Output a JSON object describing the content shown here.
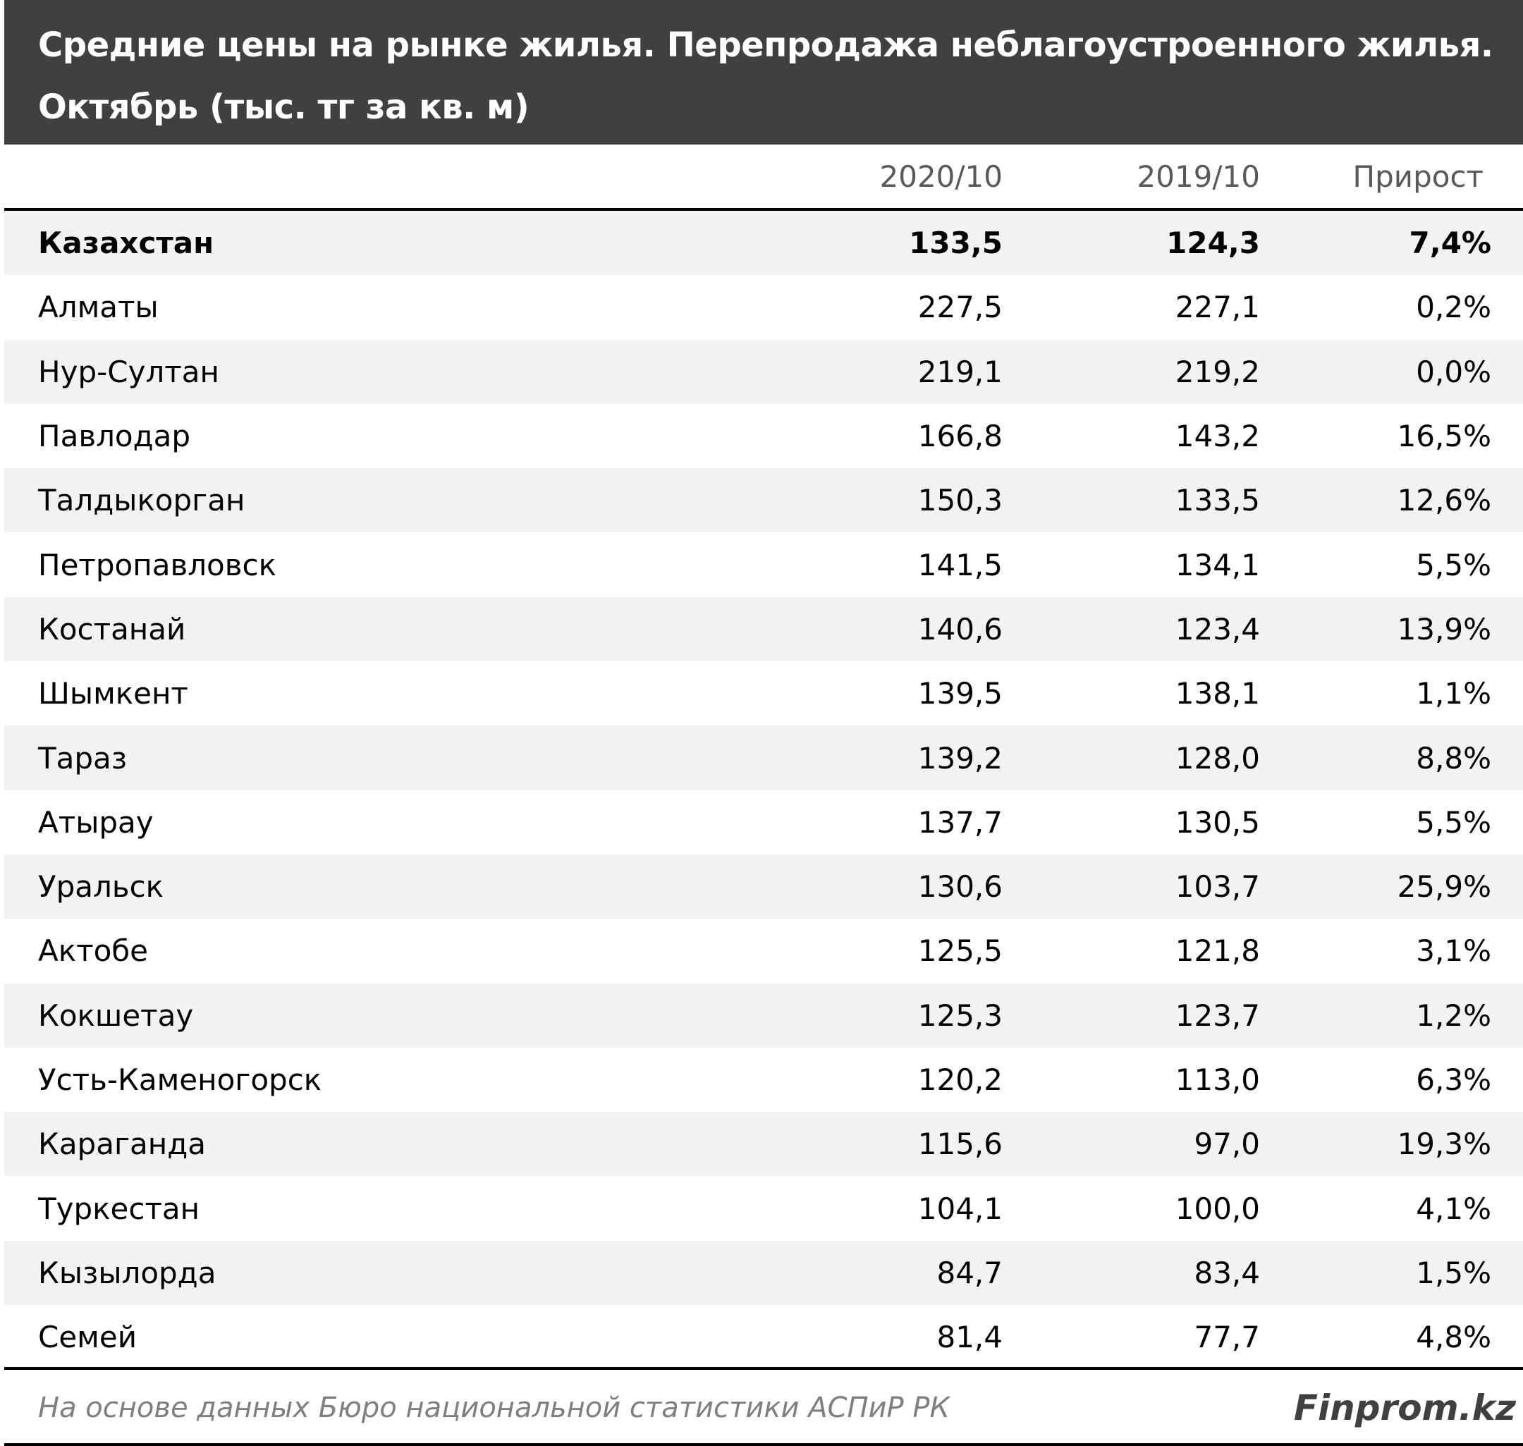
{
  "title": "Средние цены на рынке жилья. Перепродажа неблагоустроенного жилья. Октябрь (тыс. тг за кв. м)",
  "columns": [
    "",
    "2020/10",
    "2019/10",
    "Прирост"
  ],
  "rows": [
    {
      "name": "Казахстан",
      "v2020": "133,5",
      "v2019": "124,3",
      "growth": "7,4%"
    },
    {
      "name": "Алматы",
      "v2020": "227,5",
      "v2019": "227,1",
      "growth": "0,2%"
    },
    {
      "name": "Нур-Султан",
      "v2020": "219,1",
      "v2019": "219,2",
      "growth": "0,0%"
    },
    {
      "name": "Павлодар",
      "v2020": "166,8",
      "v2019": "143,2",
      "growth": "16,5%"
    },
    {
      "name": "Талдыкорган",
      "v2020": "150,3",
      "v2019": "133,5",
      "growth": "12,6%"
    },
    {
      "name": "Петропавловск",
      "v2020": "141,5",
      "v2019": "134,1",
      "growth": "5,5%"
    },
    {
      "name": "Костанай",
      "v2020": "140,6",
      "v2019": "123,4",
      "growth": "13,9%"
    },
    {
      "name": "Шымкент",
      "v2020": "139,5",
      "v2019": "138,1",
      "growth": "1,1%"
    },
    {
      "name": "Тараз",
      "v2020": "139,2",
      "v2019": "128,0",
      "growth": "8,8%"
    },
    {
      "name": "Атырау",
      "v2020": "137,7",
      "v2019": "130,5",
      "growth": "5,5%"
    },
    {
      "name": "Уральск",
      "v2020": "130,6",
      "v2019": "103,7",
      "growth": "25,9%"
    },
    {
      "name": "Актобе",
      "v2020": "125,5",
      "v2019": "121,8",
      "growth": "3,1%"
    },
    {
      "name": "Кокшетау",
      "v2020": "125,3",
      "v2019": "123,7",
      "growth": "1,2%"
    },
    {
      "name": "Усть-Каменогорск",
      "v2020": "120,2",
      "v2019": "113,0",
      "growth": "6,3%"
    },
    {
      "name": "Караганда",
      "v2020": "115,6",
      "v2019": "97,0",
      "growth": "19,3%"
    },
    {
      "name": "Туркестан",
      "v2020": "104,1",
      "v2019": "100,0",
      "growth": "4,1%"
    },
    {
      "name": "Кызылорда",
      "v2020": "84,7",
      "v2019": "83,4",
      "growth": "1,5%"
    },
    {
      "name": "Семей",
      "v2020": "81,4",
      "v2019": "77,7",
      "growth": "4,8%"
    }
  ],
  "source": "На основе данных Бюро национальной статистики АСПиР РК",
  "brand": "Finprom.kz",
  "chart_data": {
    "type": "table",
    "title": "Средние цены на рынке жилья. Перепродажа неблагоустроенного жилья. Октябрь (тыс. тг за кв. м)",
    "columns": [
      "2020/10",
      "2019/10",
      "Прирост"
    ],
    "categories": [
      "Казахстан",
      "Алматы",
      "Нур-Султан",
      "Павлодар",
      "Талдыкорган",
      "Петропавловск",
      "Костанай",
      "Шымкент",
      "Тараз",
      "Атырау",
      "Уральск",
      "Актобе",
      "Кокшетау",
      "Усть-Каменогорск",
      "Караганда",
      "Туркестан",
      "Кызылорда",
      "Семей"
    ],
    "series": [
      {
        "name": "2020/10",
        "values": [
          133.5,
          227.5,
          219.1,
          166.8,
          150.3,
          141.5,
          140.6,
          139.5,
          139.2,
          137.7,
          130.6,
          125.5,
          125.3,
          120.2,
          115.6,
          104.1,
          84.7,
          81.4
        ]
      },
      {
        "name": "2019/10",
        "values": [
          124.3,
          227.1,
          219.2,
          143.2,
          133.5,
          134.1,
          123.4,
          138.1,
          128.0,
          130.5,
          103.7,
          121.8,
          123.7,
          113.0,
          97.0,
          100.0,
          83.4,
          77.7
        ]
      },
      {
        "name": "Прирост",
        "values": [
          7.4,
          0.2,
          0.0,
          16.5,
          12.6,
          5.5,
          13.9,
          1.1,
          8.8,
          5.5,
          25.9,
          3.1,
          1.2,
          6.3,
          19.3,
          4.1,
          1.5,
          4.8
        ]
      }
    ],
    "colors": {
      "title_bg": "#404040",
      "row_shade": "#f2f2f2",
      "header_text": "#595959"
    }
  }
}
